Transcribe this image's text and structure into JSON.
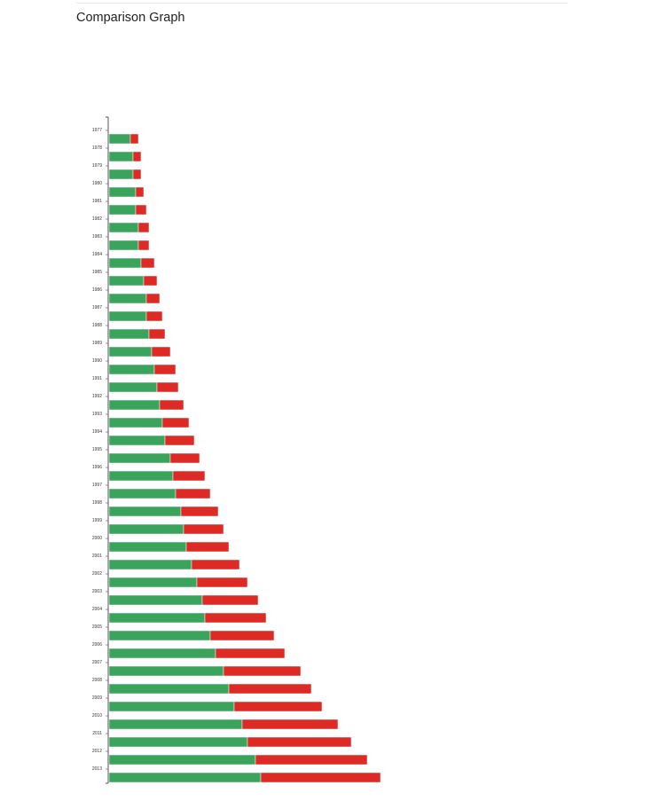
{
  "page": {
    "title": "Comparison Graph"
  },
  "colors": {
    "series_a": "#3aa35c",
    "series_b": "#dd2a25",
    "axis": "#555555"
  },
  "chart_data": {
    "type": "bar",
    "orientation": "horizontal",
    "stacked": true,
    "title": "",
    "xlabel": "",
    "ylabel": "",
    "grid": false,
    "legend": "none",
    "xlim": [
      0,
      53
    ],
    "categories": [
      "1977",
      "1978",
      "1979",
      "1980",
      "1981",
      "1982",
      "1983",
      "1984",
      "1985",
      "1986",
      "1987",
      "1988",
      "1989",
      "1990",
      "1991",
      "1992",
      "1993",
      "1994",
      "1995",
      "1996",
      "1997",
      "1998",
      "1999",
      "2000",
      "2001",
      "2002",
      "2003",
      "2004",
      "2005",
      "2006",
      "2007",
      "2008",
      "2009",
      "2010",
      "2011",
      "2012",
      "2013"
    ],
    "series": [
      {
        "color": "#3aa35c",
        "values": [
          4.0,
          4.5,
          4.5,
          5.0,
          5.0,
          5.5,
          5.5,
          6.0,
          6.5,
          7.0,
          7.0,
          7.5,
          8.0,
          8.5,
          9.0,
          9.5,
          10.0,
          10.5,
          11.5,
          12.0,
          12.5,
          13.5,
          14.0,
          14.5,
          15.5,
          16.5,
          17.5,
          18.0,
          19.0,
          20.0,
          21.5,
          22.5,
          23.5,
          25.0,
          26.0,
          27.5,
          28.5
        ]
      },
      {
        "color": "#dd2a25",
        "values": [
          1.5,
          1.5,
          1.5,
          1.5,
          2.0,
          2.0,
          2.0,
          2.5,
          2.5,
          2.5,
          3.0,
          3.0,
          3.5,
          4.0,
          4.0,
          4.5,
          5.0,
          5.5,
          5.5,
          6.0,
          6.5,
          7.0,
          7.5,
          8.0,
          9.0,
          9.5,
          10.5,
          11.5,
          12.0,
          13.0,
          14.5,
          15.5,
          16.5,
          18.0,
          19.5,
          21.0,
          22.5
        ]
      }
    ]
  }
}
